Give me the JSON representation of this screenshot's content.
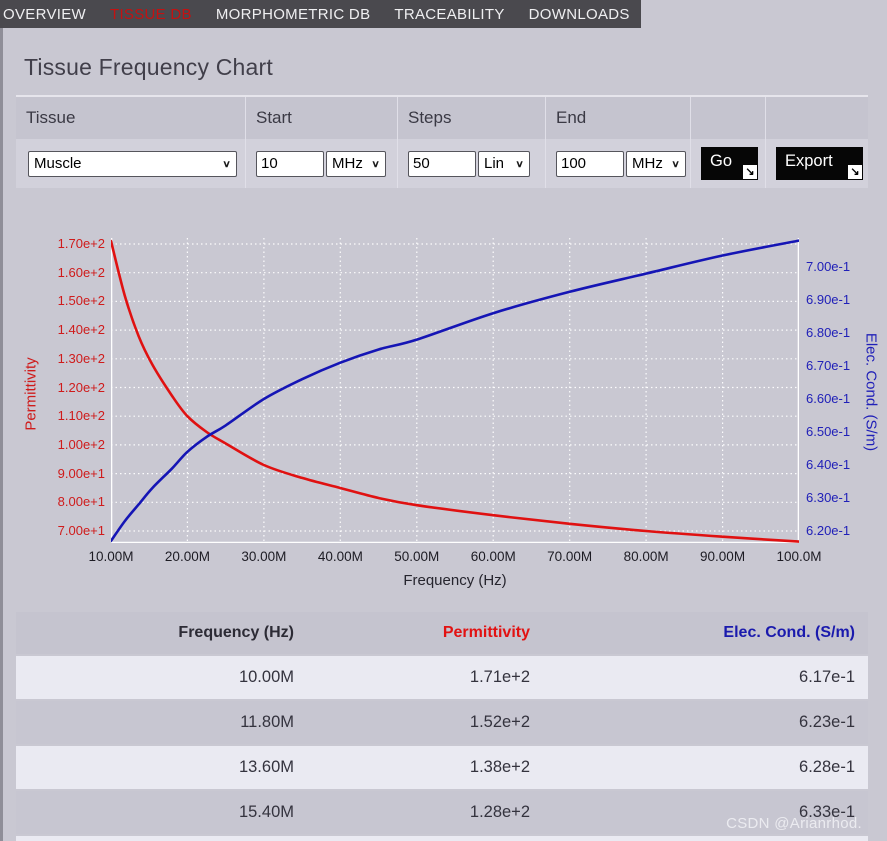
{
  "nav": {
    "items": [
      {
        "label": "OVERVIEW",
        "active": false
      },
      {
        "label": "TISSUE DB",
        "active": true
      },
      {
        "label": "MORPHOMETRIC DB",
        "active": false
      },
      {
        "label": "TRACEABILITY",
        "active": false
      },
      {
        "label": "DOWNLOADS",
        "active": false
      }
    ]
  },
  "page": {
    "title": "Tissue Frequency Chart"
  },
  "form": {
    "labels": {
      "tissue": "Tissue",
      "start": "Start",
      "steps": "Steps",
      "end": "End"
    },
    "tissue": {
      "value": "Muscle"
    },
    "start": {
      "value": "10",
      "unit": "MHz"
    },
    "steps": {
      "value": "50",
      "mode": "Lin"
    },
    "end": {
      "value": "100",
      "unit": "MHz"
    },
    "go_label": "Go",
    "export_label": "Export",
    "button_arrow": "↘"
  },
  "chart_data": {
    "type": "line",
    "x_axis": {
      "label": "Frequency (Hz)",
      "unit": "MHz",
      "min": 10,
      "max": 100,
      "tick_values": [
        10,
        20,
        30,
        40,
        50,
        60,
        70,
        80,
        90,
        100
      ],
      "tick_labels": [
        "10.00M",
        "20.00M",
        "30.00M",
        "40.00M",
        "50.00M",
        "60.00M",
        "70.00M",
        "80.00M",
        "90.00M",
        "100.0M"
      ]
    },
    "left_axis": {
      "label": "Permittivity",
      "color": "#cf1b1b",
      "tick_values": [
        170,
        160,
        150,
        140,
        130,
        120,
        110,
        100,
        90,
        80,
        70
      ],
      "tick_labels": [
        "1.70e+2",
        "1.60e+2",
        "1.50e+2",
        "1.40e+2",
        "1.30e+2",
        "1.20e+2",
        "1.10e+2",
        "1.00e+2",
        "9.00e+1",
        "8.00e+1",
        "7.00e+1"
      ],
      "plot_min": 65.82,
      "plot_max": 172.09
    },
    "right_axis": {
      "label": "Elec. Cond. (S/m)",
      "color": "#2020b8",
      "tick_values": [
        0.7,
        0.69,
        0.68,
        0.67,
        0.66,
        0.65,
        0.64,
        0.63,
        0.62
      ],
      "tick_labels": [
        "7.00e-1",
        "6.90e-1",
        "6.80e-1",
        "6.70e-1",
        "6.60e-1",
        "6.50e-1",
        "6.40e-1",
        "6.30e-1",
        "6.20e-1"
      ],
      "plot_min": 0.61636,
      "plot_max": 0.70879
    },
    "grid": {
      "horizontal": "left-axis-ticks",
      "vertical": "x-axis-ticks",
      "style": "white-dotted"
    },
    "legend": "none",
    "series": [
      {
        "name": "Permittivity",
        "axis": "left",
        "color": "#e01111",
        "x": [
          10,
          11.8,
          13.6,
          15.4,
          18,
          20,
          22.5,
          25,
          30,
          35,
          40,
          45,
          50,
          60,
          70,
          80,
          90,
          100
        ],
        "values": [
          171,
          152,
          138,
          128,
          117,
          110,
          104.5,
          100.5,
          93,
          88.5,
          85,
          81.5,
          79,
          75.5,
          72.5,
          70,
          68,
          66.3
        ]
      },
      {
        "name": "Elec. Cond. (S/m)",
        "axis": "right",
        "color": "#1515b5",
        "x": [
          10,
          11.8,
          13.6,
          15.4,
          18,
          20,
          22.5,
          25,
          30,
          35,
          40,
          45,
          50,
          60,
          70,
          80,
          90,
          100
        ],
        "values": [
          0.617,
          0.623,
          0.628,
          0.633,
          0.639,
          0.644,
          0.6485,
          0.652,
          0.66,
          0.666,
          0.671,
          0.675,
          0.678,
          0.686,
          0.6925,
          0.698,
          0.7035,
          0.708
        ]
      }
    ]
  },
  "table": {
    "headers": [
      "Frequency (Hz)",
      "Permittivity",
      "Elec. Cond. (S/m)"
    ],
    "rows": [
      [
        "10.00M",
        "1.71e+2",
        "6.17e-1"
      ],
      [
        "11.80M",
        "1.52e+2",
        "6.23e-1"
      ],
      [
        "13.60M",
        "1.38e+2",
        "6.28e-1"
      ],
      [
        "15.40M",
        "1.28e+2",
        "6.33e-1"
      ]
    ],
    "partial_next_row_visible": true
  },
  "watermark": "CSDN @Arianrhod."
}
